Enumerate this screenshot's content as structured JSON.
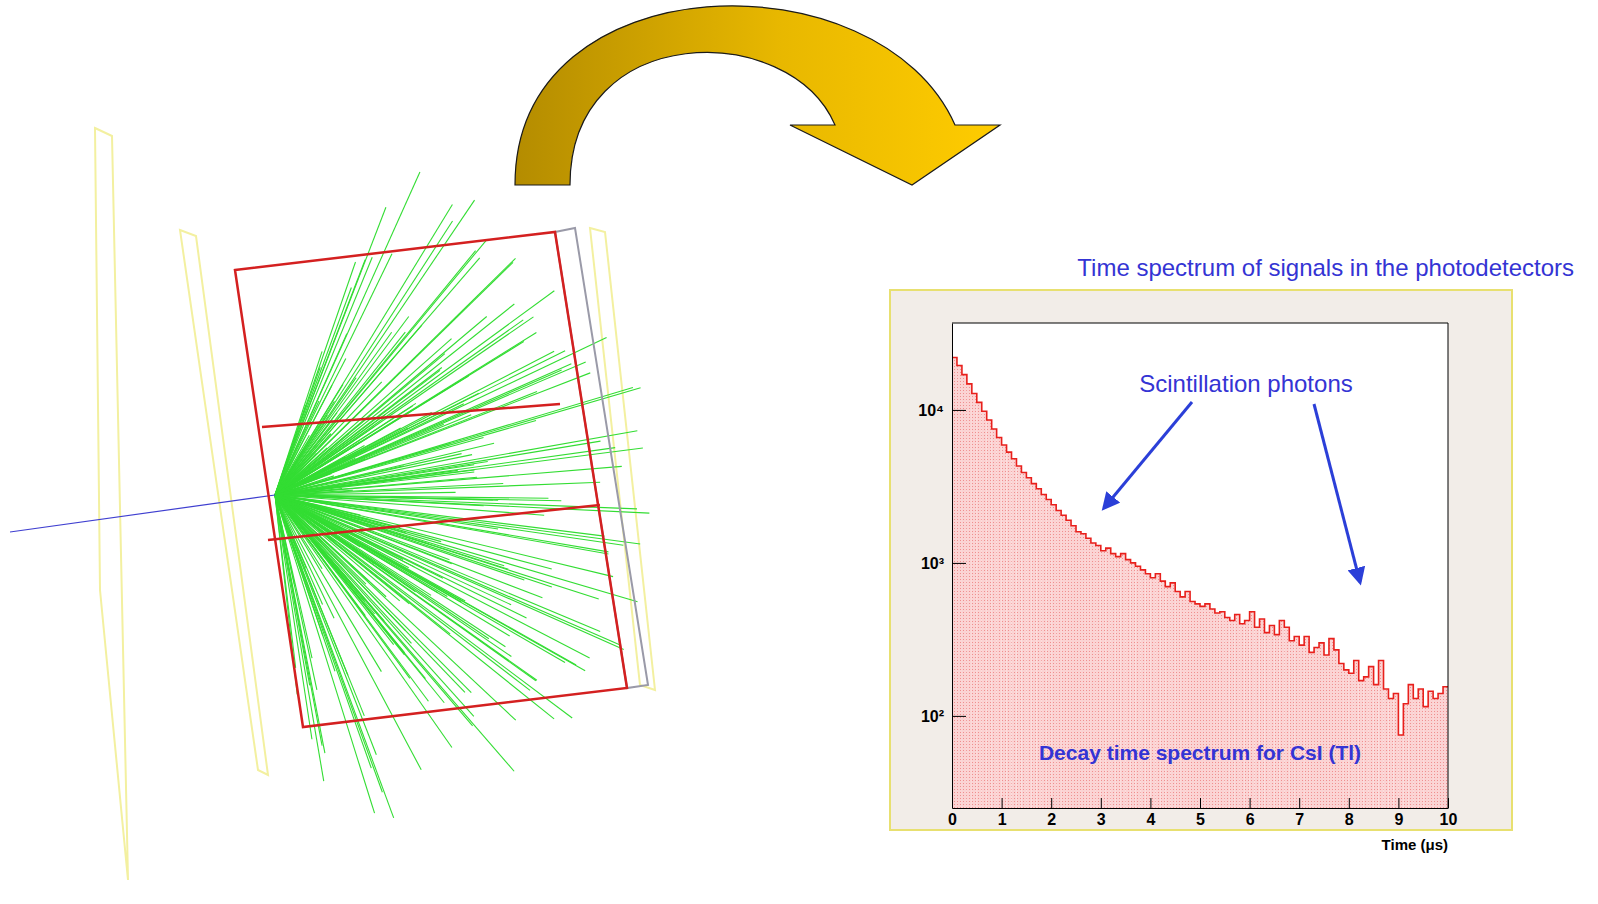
{
  "chart_data": {
    "type": "histogram",
    "title": "Time spectrum of signals in the photodetectors",
    "x_label": "Time (μs)",
    "annotations": [
      "Scintillation photons",
      "Decay time spectrum for CsI (Tl)"
    ],
    "color": "#e8201c",
    "log": "y",
    "bins": [
      0,
      0.1,
      0.2,
      0.3,
      0.4,
      0.5,
      0.6,
      0.7,
      0.8,
      0.9,
      1,
      1.1,
      1.2,
      1.3,
      1.4,
      1.5,
      1.6,
      1.7,
      1.8,
      1.9,
      2,
      2.1,
      2.2,
      2.3,
      2.4,
      2.5,
      2.6,
      2.7,
      2.8,
      2.9,
      3,
      3.1,
      3.2,
      3.3,
      3.4,
      3.5,
      3.6,
      3.7,
      3.8,
      3.9,
      4,
      4.1,
      4.2,
      4.3,
      4.4,
      4.5,
      4.6,
      4.7,
      4.8,
      4.9,
      5,
      5.1,
      5.2,
      5.3,
      5.4,
      5.5,
      5.6,
      5.7,
      5.8,
      5.9,
      6,
      6.1,
      6.2,
      6.3,
      6.4,
      6.5,
      6.6,
      6.7,
      6.8,
      6.9,
      7,
      7.1,
      7.2,
      7.3,
      7.4,
      7.5,
      7.6,
      7.7,
      7.8,
      7.9,
      8,
      8.1,
      8.2,
      8.3,
      8.4,
      8.5,
      8.6,
      8.7,
      8.8,
      8.9,
      9,
      9.1,
      9.2,
      9.3,
      9.4,
      9.5,
      9.6,
      9.7,
      9.8,
      9.9,
      10
    ],
    "values": [
      22000,
      19500,
      17000,
      14800,
      12800,
      11200,
      9800,
      8600,
      7500,
      6600,
      5900,
      5300,
      4800,
      4300,
      3900,
      3600,
      3300,
      3050,
      2800,
      2600,
      2400,
      2200,
      2050,
      1900,
      1750,
      1600,
      1550,
      1450,
      1350,
      1300,
      1200,
      1250,
      1150,
      1100,
      1150,
      1050,
      1000,
      950,
      900,
      850,
      800,
      850,
      760,
      700,
      740,
      650,
      600,
      650,
      560,
      540,
      520,
      540,
      500,
      470,
      480,
      440,
      420,
      460,
      400,
      420,
      480,
      380,
      430,
      350,
      390,
      340,
      420,
      380,
      310,
      330,
      290,
      330,
      260,
      280,
      300,
      250,
      320,
      270,
      220,
      200,
      190,
      230,
      170,
      180,
      210,
      160,
      230,
      150,
      130,
      140,
      75,
      120,
      160,
      130,
      150,
      115,
      145,
      130,
      140,
      155
    ],
    "xlim": [
      0,
      10
    ],
    "xticks": [
      0,
      1,
      2,
      3,
      4,
      5,
      6,
      7,
      8,
      9,
      10
    ],
    "ylim": [
      25,
      37000
    ],
    "yticks": [
      {
        "value": 100,
        "label": "10²"
      },
      {
        "value": 1000,
        "label": "10³"
      },
      {
        "value": 10000,
        "label": "10⁴"
      }
    ]
  }
}
